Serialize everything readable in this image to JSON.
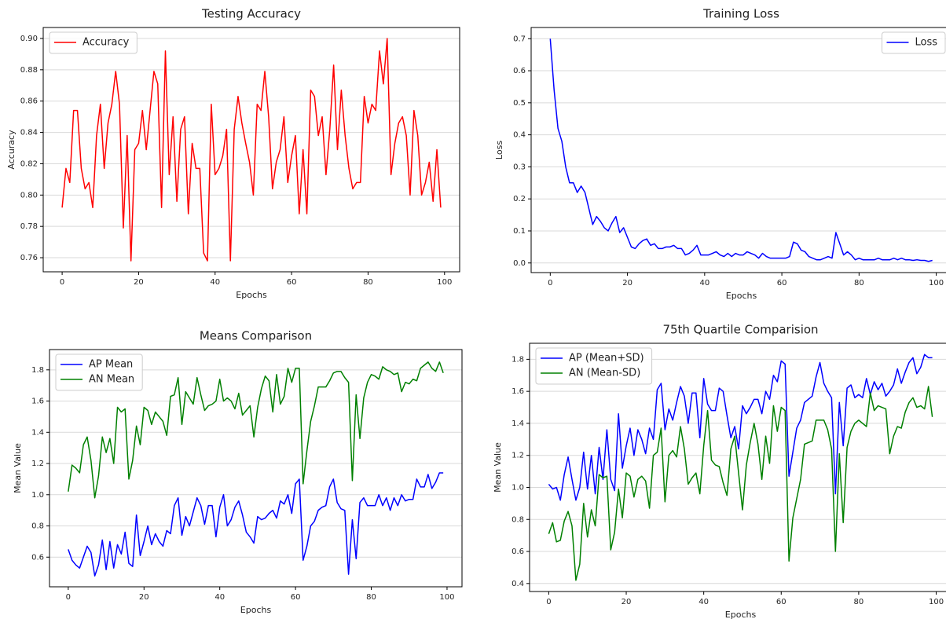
{
  "chart_data": [
    {
      "type": "line",
      "title": "Testing Accuracy",
      "x_label": "Epochs",
      "y_label": "Accuracy",
      "x": [
        0,
        1,
        2,
        3,
        4,
        5,
        6,
        7,
        8,
        9,
        10,
        11,
        12,
        13,
        14,
        15,
        16,
        17,
        18,
        19,
        20,
        21,
        22,
        23,
        24,
        25,
        26,
        27,
        28,
        29,
        30,
        31,
        32,
        33,
        34,
        35,
        36,
        37,
        38,
        39,
        40,
        41,
        42,
        43,
        44,
        45,
        46,
        47,
        48,
        49,
        50,
        51,
        52,
        53,
        54,
        55,
        56,
        57,
        58,
        59,
        60,
        61,
        62,
        63,
        64,
        65,
        66,
        67,
        68,
        69,
        70,
        71,
        72,
        73,
        74,
        75,
        76,
        77,
        78,
        79,
        80,
        81,
        82,
        83,
        84,
        85,
        86,
        87,
        88,
        89,
        90,
        91,
        92,
        93,
        94,
        95,
        96,
        97,
        98,
        99
      ],
      "series": [
        {
          "name": "Accuracy",
          "color": "#ff0000",
          "values": [
            0.792,
            0.817,
            0.808,
            0.854,
            0.854,
            0.817,
            0.804,
            0.808,
            0.792,
            0.838,
            0.858,
            0.817,
            0.846,
            0.858,
            0.879,
            0.858,
            0.779,
            0.838,
            0.758,
            0.829,
            0.833,
            0.854,
            0.829,
            0.854,
            0.879,
            0.871,
            0.792,
            0.892,
            0.813,
            0.85,
            0.796,
            0.842,
            0.85,
            0.788,
            0.833,
            0.817,
            0.817,
            0.763,
            0.758,
            0.858,
            0.813,
            0.817,
            0.825,
            0.842,
            0.758,
            0.842,
            0.863,
            0.846,
            0.833,
            0.821,
            0.8,
            0.858,
            0.854,
            0.879,
            0.85,
            0.804,
            0.821,
            0.829,
            0.85,
            0.808,
            0.825,
            0.838,
            0.788,
            0.829,
            0.788,
            0.867,
            0.863,
            0.838,
            0.85,
            0.813,
            0.842,
            0.883,
            0.829,
            0.867,
            0.838,
            0.817,
            0.804,
            0.808,
            0.808,
            0.863,
            0.846,
            0.858,
            0.854,
            0.892,
            0.871,
            0.9,
            0.813,
            0.833,
            0.846,
            0.85,
            0.838,
            0.8,
            0.854,
            0.838,
            0.8,
            0.808,
            0.821,
            0.796,
            0.829,
            0.792
          ]
        }
      ],
      "xlim": [
        -4.95,
        103.95
      ],
      "xticks": [
        0,
        20,
        40,
        60,
        80,
        100
      ],
      "ylim": [
        0.751,
        0.907
      ],
      "yticks": [
        0.76,
        0.78,
        {
          "value": 0.8,
          "label": "0.80"
        },
        0.82,
        0.84,
        0.86,
        0.88,
        {
          "value": 0.9,
          "label": "0.90"
        }
      ],
      "grid": true,
      "legend": "upper left"
    },
    {
      "type": "line",
      "title": "Training Loss",
      "x_label": "Epochs",
      "y_label": "Loss",
      "x": [
        0,
        1,
        2,
        3,
        4,
        5,
        6,
        7,
        8,
        9,
        10,
        11,
        12,
        13,
        14,
        15,
        16,
        17,
        18,
        19,
        20,
        21,
        22,
        23,
        24,
        25,
        26,
        27,
        28,
        29,
        30,
        31,
        32,
        33,
        34,
        35,
        36,
        37,
        38,
        39,
        40,
        41,
        42,
        43,
        44,
        45,
        46,
        47,
        48,
        49,
        50,
        51,
        52,
        53,
        54,
        55,
        56,
        57,
        58,
        59,
        60,
        61,
        62,
        63,
        64,
        65,
        66,
        67,
        68,
        69,
        70,
        71,
        72,
        73,
        74,
        75,
        76,
        77,
        78,
        79,
        80,
        81,
        82,
        83,
        84,
        85,
        86,
        87,
        88,
        89,
        90,
        91,
        92,
        93,
        94,
        95,
        96,
        97,
        98,
        99
      ],
      "series": [
        {
          "name": "Loss",
          "color": "#0000ff",
          "values": [
            0.7,
            0.54,
            0.42,
            0.38,
            0.3,
            0.25,
            0.25,
            0.22,
            0.24,
            0.22,
            0.17,
            0.12,
            0.145,
            0.13,
            0.11,
            0.1,
            0.125,
            0.145,
            0.095,
            0.11,
            0.08,
            0.05,
            0.045,
            0.06,
            0.07,
            0.075,
            0.055,
            0.06,
            0.045,
            0.045,
            0.05,
            0.05,
            0.055,
            0.045,
            0.045,
            0.025,
            0.03,
            0.04,
            0.055,
            0.025,
            0.025,
            0.025,
            0.03,
            0.035,
            0.025,
            0.02,
            0.03,
            0.02,
            0.03,
            0.025,
            0.025,
            0.035,
            0.03,
            0.025,
            0.015,
            0.03,
            0.02,
            0.015,
            0.015,
            0.015,
            0.015,
            0.015,
            0.02,
            0.065,
            0.06,
            0.04,
            0.035,
            0.02,
            0.015,
            0.01,
            0.01,
            0.015,
            0.02,
            0.015,
            0.095,
            0.06,
            0.025,
            0.035,
            0.025,
            0.01,
            0.015,
            0.01,
            0.01,
            0.01,
            0.01,
            0.015,
            0.01,
            0.01,
            0.01,
            0.015,
            0.01,
            0.015,
            0.01,
            0.01,
            0.008,
            0.01,
            0.008,
            0.008,
            0.005,
            0.008
          ]
        }
      ],
      "xlim": [
        -4.95,
        103.95
      ],
      "xticks": [
        0,
        20,
        40,
        60,
        80,
        100
      ],
      "ylim": [
        -0.03,
        0.735
      ],
      "yticks": [
        {
          "value": 0,
          "label": "0.0"
        },
        0.1,
        0.2,
        0.3,
        0.4,
        0.5,
        0.6,
        0.7
      ],
      "grid": true,
      "legend": "upper right"
    },
    {
      "type": "line",
      "title": "Means Comparison",
      "x_label": "Epochs",
      "y_label": "Mean Value",
      "x": [
        0,
        1,
        2,
        3,
        4,
        5,
        6,
        7,
        8,
        9,
        10,
        11,
        12,
        13,
        14,
        15,
        16,
        17,
        18,
        19,
        20,
        21,
        22,
        23,
        24,
        25,
        26,
        27,
        28,
        29,
        30,
        31,
        32,
        33,
        34,
        35,
        36,
        37,
        38,
        39,
        40,
        41,
        42,
        43,
        44,
        45,
        46,
        47,
        48,
        49,
        50,
        51,
        52,
        53,
        54,
        55,
        56,
        57,
        58,
        59,
        60,
        61,
        62,
        63,
        64,
        65,
        66,
        67,
        68,
        69,
        70,
        71,
        72,
        73,
        74,
        75,
        76,
        77,
        78,
        79,
        80,
        81,
        82,
        83,
        84,
        85,
        86,
        87,
        88,
        89,
        90,
        91,
        92,
        93,
        94,
        95,
        96,
        97,
        98,
        99
      ],
      "series": [
        {
          "name": "AP Mean",
          "color": "#0000ff",
          "values": [
            0.65,
            0.58,
            0.55,
            0.53,
            0.6,
            0.67,
            0.63,
            0.48,
            0.55,
            0.71,
            0.52,
            0.7,
            0.53,
            0.68,
            0.62,
            0.76,
            0.56,
            0.54,
            0.87,
            0.61,
            0.7,
            0.8,
            0.68,
            0.75,
            0.7,
            0.67,
            0.77,
            0.75,
            0.93,
            0.98,
            0.74,
            0.86,
            0.8,
            0.89,
            0.98,
            0.93,
            0.81,
            0.93,
            0.93,
            0.73,
            0.92,
            1.0,
            0.8,
            0.84,
            0.92,
            0.96,
            0.87,
            0.76,
            0.73,
            0.69,
            0.86,
            0.84,
            0.85,
            0.88,
            0.9,
            0.85,
            0.96,
            0.94,
            1.0,
            0.88,
            1.07,
            1.1,
            0.58,
            0.67,
            0.8,
            0.83,
            0.9,
            0.92,
            0.93,
            1.05,
            1.1,
            0.95,
            0.91,
            0.9,
            0.49,
            0.84,
            0.59,
            0.95,
            0.98,
            0.93,
            0.93,
            0.93,
            1.0,
            0.93,
            0.98,
            0.9,
            0.98,
            0.93,
            1.0,
            0.96,
            0.97,
            0.97,
            1.1,
            1.05,
            1.05,
            1.13,
            1.04,
            1.08,
            1.14,
            1.14
          ]
        },
        {
          "name": "AN Mean",
          "color": "#008000",
          "values": [
            1.02,
            1.19,
            1.17,
            1.14,
            1.32,
            1.37,
            1.22,
            0.98,
            1.12,
            1.37,
            1.27,
            1.36,
            1.2,
            1.56,
            1.53,
            1.55,
            1.1,
            1.22,
            1.44,
            1.32,
            1.56,
            1.54,
            1.45,
            1.53,
            1.5,
            1.47,
            1.38,
            1.63,
            1.64,
            1.75,
            1.45,
            1.66,
            1.62,
            1.58,
            1.75,
            1.64,
            1.54,
            1.57,
            1.58,
            1.6,
            1.74,
            1.6,
            1.62,
            1.6,
            1.55,
            1.65,
            1.51,
            1.54,
            1.57,
            1.37,
            1.56,
            1.68,
            1.76,
            1.73,
            1.53,
            1.77,
            1.58,
            1.63,
            1.81,
            1.72,
            1.81,
            1.81,
            1.07,
            1.28,
            1.47,
            1.57,
            1.69,
            1.69,
            1.69,
            1.73,
            1.78,
            1.79,
            1.79,
            1.75,
            1.72,
            1.09,
            1.64,
            1.36,
            1.62,
            1.72,
            1.77,
            1.76,
            1.74,
            1.82,
            1.8,
            1.79,
            1.77,
            1.78,
            1.66,
            1.72,
            1.71,
            1.74,
            1.73,
            1.81,
            1.83,
            1.85,
            1.81,
            1.79,
            1.85,
            1.78
          ]
        }
      ],
      "xlim": [
        -4.95,
        103.95
      ],
      "xticks": [
        0,
        20,
        40,
        60,
        80,
        100
      ],
      "ylim": [
        0.41,
        1.93
      ],
      "yticks": [
        0.6,
        0.8,
        {
          "value": 1,
          "label": "1.0"
        },
        1.2,
        1.4,
        1.6,
        1.8
      ],
      "grid": true,
      "legend": "upper left"
    },
    {
      "type": "line",
      "title": "75th Quartile Comparision",
      "x_label": "Epochs",
      "y_label": "Mean Value",
      "x": [
        0,
        1,
        2,
        3,
        4,
        5,
        6,
        7,
        8,
        9,
        10,
        11,
        12,
        13,
        14,
        15,
        16,
        17,
        18,
        19,
        20,
        21,
        22,
        23,
        24,
        25,
        26,
        27,
        28,
        29,
        30,
        31,
        32,
        33,
        34,
        35,
        36,
        37,
        38,
        39,
        40,
        41,
        42,
        43,
        44,
        45,
        46,
        47,
        48,
        49,
        50,
        51,
        52,
        53,
        54,
        55,
        56,
        57,
        58,
        59,
        60,
        61,
        62,
        63,
        64,
        65,
        66,
        67,
        68,
        69,
        70,
        71,
        72,
        73,
        74,
        75,
        76,
        77,
        78,
        79,
        80,
        81,
        82,
        83,
        84,
        85,
        86,
        87,
        88,
        89,
        90,
        91,
        92,
        93,
        94,
        95,
        96,
        97,
        98,
        99
      ],
      "series": [
        {
          "name": "AP (Mean+SD)",
          "color": "#0000ff",
          "values": [
            1.02,
            0.99,
            1.0,
            0.92,
            1.08,
            1.19,
            1.05,
            0.92,
            1.0,
            1.22,
            0.99,
            1.2,
            0.96,
            1.25,
            1.05,
            1.36,
            1.05,
            0.98,
            1.46,
            1.12,
            1.26,
            1.37,
            1.2,
            1.36,
            1.3,
            1.21,
            1.37,
            1.3,
            1.61,
            1.65,
            1.36,
            1.49,
            1.42,
            1.53,
            1.63,
            1.57,
            1.4,
            1.59,
            1.59,
            1.31,
            1.68,
            1.52,
            1.48,
            1.48,
            1.62,
            1.6,
            1.45,
            1.31,
            1.38,
            1.24,
            1.51,
            1.46,
            1.5,
            1.55,
            1.55,
            1.46,
            1.6,
            1.55,
            1.7,
            1.66,
            1.79,
            1.77,
            1.07,
            1.22,
            1.37,
            1.42,
            1.53,
            1.55,
            1.57,
            1.69,
            1.78,
            1.65,
            1.6,
            1.56,
            0.96,
            1.53,
            1.26,
            1.62,
            1.64,
            1.56,
            1.58,
            1.56,
            1.68,
            1.58,
            1.66,
            1.61,
            1.65,
            1.57,
            1.6,
            1.64,
            1.74,
            1.65,
            1.72,
            1.78,
            1.81,
            1.71,
            1.75,
            1.83,
            1.81,
            1.81
          ]
        },
        {
          "name": "AN (Mean-SD)",
          "color": "#008000",
          "values": [
            0.71,
            0.78,
            0.66,
            0.67,
            0.79,
            0.85,
            0.76,
            0.42,
            0.52,
            0.9,
            0.69,
            0.86,
            0.76,
            1.08,
            1.06,
            1.07,
            0.61,
            0.72,
            0.99,
            0.81,
            1.09,
            1.07,
            0.94,
            1.05,
            1.07,
            1.04,
            0.87,
            1.2,
            1.22,
            1.37,
            0.91,
            1.2,
            1.23,
            1.19,
            1.38,
            1.24,
            1.02,
            1.06,
            1.09,
            0.96,
            1.26,
            1.48,
            1.17,
            1.14,
            1.13,
            1.03,
            0.95,
            1.24,
            1.32,
            1.09,
            0.86,
            1.14,
            1.28,
            1.4,
            1.27,
            1.05,
            1.32,
            1.15,
            1.51,
            1.35,
            1.5,
            1.48,
            0.54,
            0.81,
            0.93,
            1.05,
            1.27,
            1.28,
            1.29,
            1.42,
            1.42,
            1.42,
            1.36,
            1.24,
            0.6,
            1.21,
            0.78,
            1.25,
            1.35,
            1.4,
            1.42,
            1.4,
            1.38,
            1.59,
            1.48,
            1.51,
            1.5,
            1.49,
            1.21,
            1.32,
            1.38,
            1.37,
            1.47,
            1.53,
            1.56,
            1.5,
            1.51,
            1.49,
            1.63,
            1.44
          ]
        }
      ],
      "xlim": [
        -4.95,
        103.95
      ],
      "xticks": [
        0,
        20,
        40,
        60,
        80,
        100
      ],
      "ylim": [
        0.35,
        1.9
      ],
      "yticks": [
        0.4,
        0.6,
        0.8,
        {
          "value": 1,
          "label": "1.0"
        },
        1.2,
        1.4,
        1.6,
        1.8
      ],
      "grid": true,
      "legend": "upper left"
    }
  ]
}
